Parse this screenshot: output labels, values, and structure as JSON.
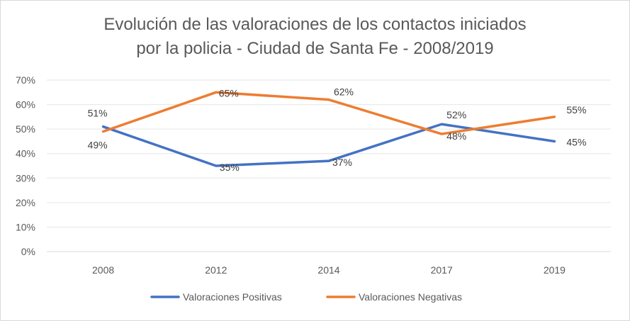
{
  "chart_data": {
    "type": "line",
    "title_line1": "Evolución de las valoraciones de los contactos iniciados",
    "title_line2": "por la policia - Ciudad de Santa Fe - 2008/2019",
    "categories": [
      "2008",
      "2012",
      "2014",
      "2017",
      "2019"
    ],
    "y_ticks": [
      "0%",
      "10%",
      "20%",
      "30%",
      "40%",
      "50%",
      "60%",
      "70%"
    ],
    "ylim": [
      0,
      70
    ],
    "grid": true,
    "legend_position": "bottom",
    "series": [
      {
        "name": "Valoraciones Positivas",
        "color": "#4472c4",
        "values": [
          51,
          35,
          37,
          52,
          45
        ],
        "labels": [
          "51%",
          "35%",
          "37%",
          "52%",
          "45%"
        ]
      },
      {
        "name": "Valoraciones Negativas",
        "color": "#ed7d31",
        "values": [
          49,
          65,
          62,
          48,
          55
        ],
        "labels": [
          "49%",
          "65%",
          "62%",
          "48%",
          "55%"
        ]
      }
    ]
  }
}
